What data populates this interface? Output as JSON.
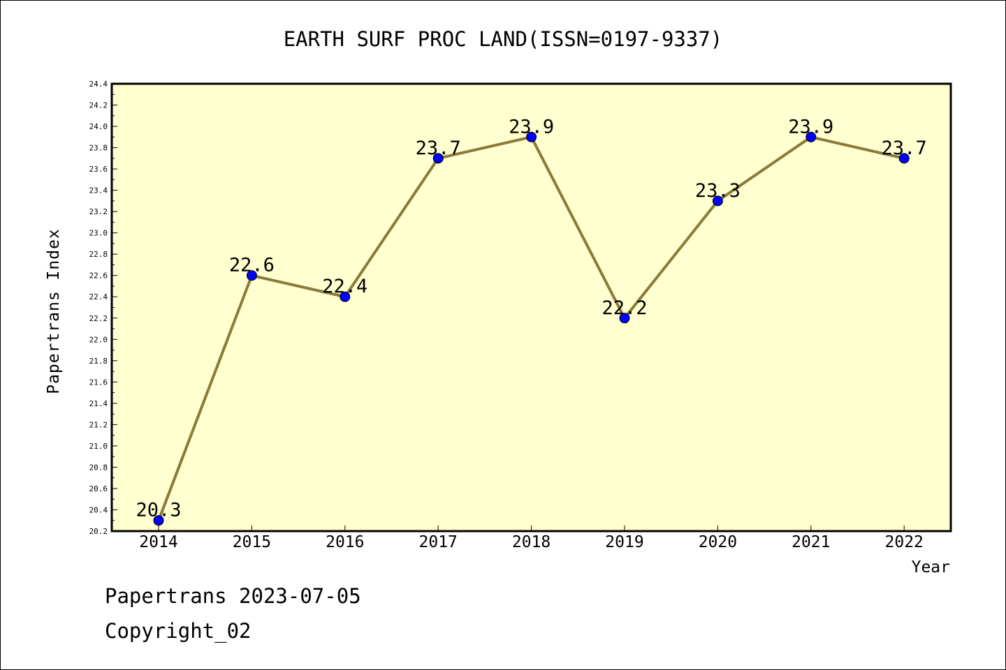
{
  "chart_data": {
    "type": "line",
    "title": "EARTH SURF PROC LAND(ISSN=0197-9337)",
    "xlabel": "Year",
    "ylabel": "Papertrans Index",
    "x": [
      "2014",
      "2015",
      "2016",
      "2017",
      "2018",
      "2019",
      "2020",
      "2021",
      "2022"
    ],
    "values": [
      20.3,
      22.6,
      22.4,
      23.7,
      23.9,
      22.2,
      23.3,
      23.9,
      23.7
    ],
    "data_labels": [
      "20.3",
      "22.6",
      "22.4",
      "23.7",
      "23.9",
      "22.2",
      "23.3",
      "23.9",
      "23.7"
    ],
    "ylim": [
      20.2,
      24.4
    ],
    "yticks": [
      "20.2",
      "20.4",
      "20.6",
      "20.8",
      "21.0",
      "21.2",
      "21.4",
      "21.6",
      "21.8",
      "22.0",
      "22.2",
      "22.4",
      "22.6",
      "22.8",
      "23.0",
      "23.2",
      "23.4",
      "23.6",
      "23.8",
      "24.0",
      "24.2",
      "24.4"
    ],
    "grid": false,
    "plot_background": "#ffffd0",
    "line_color": "#8b7a3a",
    "marker_color": "#0000ff"
  },
  "footer": {
    "line1": "Papertrans 2023-07-05",
    "line2": "Copyright_02"
  }
}
